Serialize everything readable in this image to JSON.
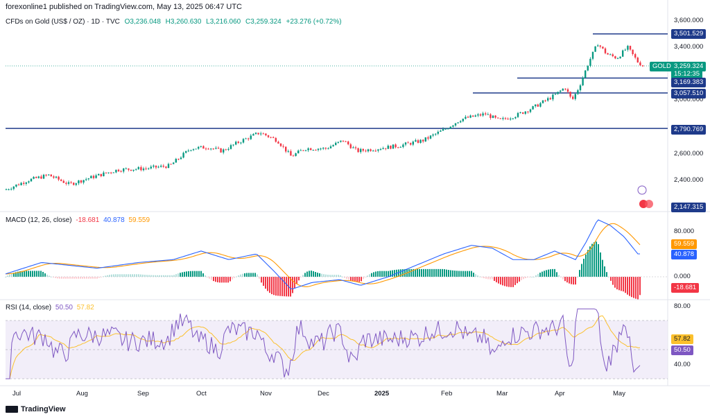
{
  "header": {
    "publisher": "forexonline1 published on TradingView.com, May 13, 2025 06:47 UTC"
  },
  "symbol": {
    "name": "CFDs on Gold (US$ / OZ) · 1D · TVC",
    "open": "O3,236.048",
    "high": "H3,260.630",
    "low": "L3,216.060",
    "close": "C3,259.324",
    "change": "+23.276 (+0.72%)",
    "tag": "GOLD",
    "price_tag": "3,259.324",
    "countdown": "15:12:35"
  },
  "colors": {
    "up": "#089981",
    "down": "#f23645",
    "macd": "#2962ff",
    "signal": "#ff9800",
    "rsi": "#7e57c2",
    "rsi_ma": "#fbc02d",
    "line": "#1e3a8a"
  },
  "levels": [
    {
      "label": "3,501.529",
      "value": 3501.529
    },
    {
      "label": "3,169.383",
      "value": 3169.383
    },
    {
      "label": "3,057.510",
      "value": 3057.51
    },
    {
      "label": "2,790.769",
      "value": 2790.769
    }
  ],
  "low_tag": "2,147.315",
  "price_ticks": [
    "3,600.000",
    "3,400.000",
    "3,200.000",
    "3,000.000",
    "2,600.000",
    "2,400.000"
  ],
  "macd": {
    "title": "MACD (12, 26, close)",
    "hist": "-18.681",
    "macd": "40.878",
    "signal": "59.559",
    "ticks": [
      "80.000",
      "0.000"
    ]
  },
  "rsi": {
    "title": "RSI (14, close)",
    "value": "50.50",
    "ma": "57.82",
    "ticks": [
      "80.00",
      "40.00"
    ]
  },
  "months": [
    "Jul",
    "Aug",
    "Sep",
    "Oct",
    "Nov",
    "Dec",
    "2025",
    "Feb",
    "Mar",
    "Apr",
    "May"
  ],
  "footer": "TradingView",
  "chart_data": {
    "type": "line",
    "x": [
      "Jul",
      "Aug",
      "Sep",
      "Oct",
      "Nov",
      "Dec",
      "2025",
      "Feb",
      "Mar",
      "Apr",
      "May"
    ],
    "series": [
      {
        "values": [
          2330,
          2420,
          2500,
          2650,
          2740,
          2630,
          2640,
          2800,
          2900,
          3100,
          3300
        ]
      }
    ],
    "ylim": [
      2147.315,
      3600
    ],
    "grid": false
  }
}
